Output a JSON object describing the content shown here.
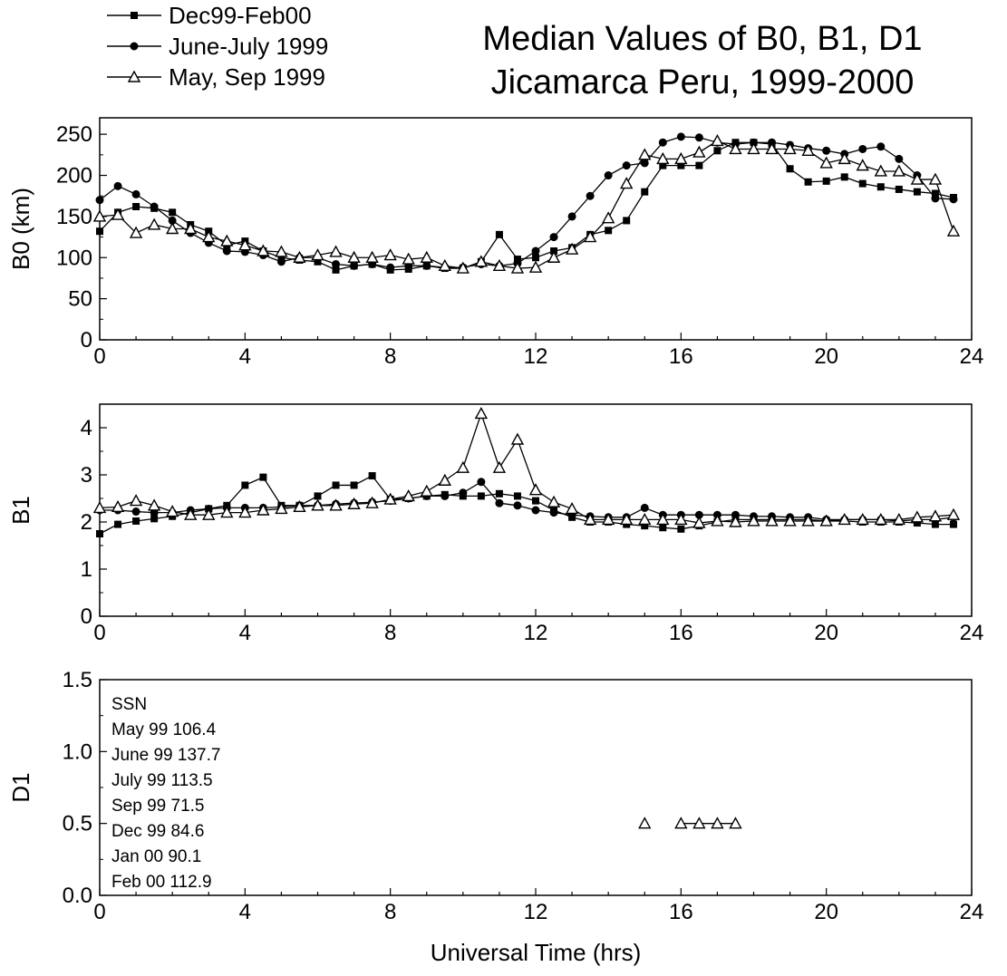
{
  "title_line1": "Median Values of B0, B1, D1",
  "title_line2": "Jicamarca Peru, 1999-2000",
  "xlabel": "Universal Time (hrs)",
  "legend": [
    {
      "label": "Dec99-Feb00",
      "marker": "square"
    },
    {
      "label": "June-July 1999",
      "marker": "circle"
    },
    {
      "label": "May, Sep 1999",
      "marker": "triangle-open"
    }
  ],
  "ssn_note": {
    "heading": "SSN",
    "lines": [
      "May 99  106.4",
      "June 99 137.7",
      "July 99  113.5",
      "Sep 99  71.5",
      "Dec 99  84.6",
      "Jan 00  90.1",
      "Feb 00  112.9"
    ]
  },
  "chart_data": [
    {
      "type": "line",
      "ylabel": "B0 (km)",
      "xlim": [
        0,
        24
      ],
      "ylim": [
        0,
        270
      ],
      "xticks": [
        0,
        4,
        8,
        12,
        16,
        20,
        24
      ],
      "yticks": [
        0,
        50,
        100,
        150,
        200,
        250
      ],
      "ytick_labels": [
        "0",
        "50",
        "100",
        "150",
        "200",
        "250"
      ],
      "series": [
        {
          "name": "Dec99-Feb00",
          "marker": "square",
          "x": [
            0,
            0.5,
            1,
            1.5,
            2,
            2.5,
            3,
            3.5,
            4,
            4.5,
            5,
            5.5,
            6,
            6.5,
            7,
            7.5,
            8,
            8.5,
            9,
            9.5,
            10,
            10.5,
            11,
            11.5,
            12,
            12.5,
            13,
            13.5,
            14,
            14.5,
            15,
            15.5,
            16,
            16.5,
            17,
            17.5,
            18,
            18.5,
            19,
            19.5,
            20,
            20.5,
            21,
            21.5,
            22,
            22.5,
            23,
            23.5
          ],
          "y": [
            132,
            155,
            162,
            160,
            155,
            140,
            132,
            115,
            120,
            108,
            100,
            97,
            95,
            85,
            90,
            92,
            85,
            86,
            90,
            87,
            87,
            95,
            128,
            98,
            100,
            108,
            112,
            128,
            133,
            145,
            180,
            212,
            212,
            212,
            230,
            240,
            240,
            238,
            208,
            192,
            193,
            198,
            190,
            186,
            183,
            180,
            178,
            173
          ]
        },
        {
          "name": "June-July 1999",
          "marker": "circle",
          "x": [
            0,
            0.5,
            1,
            1.5,
            2,
            2.5,
            3,
            3.5,
            4,
            4.5,
            5,
            5.5,
            6,
            6.5,
            7,
            7.5,
            8,
            8.5,
            9,
            9.5,
            10,
            10.5,
            11,
            11.5,
            12,
            12.5,
            13,
            13.5,
            14,
            14.5,
            15,
            15.5,
            16,
            16.5,
            17,
            17.5,
            18,
            18.5,
            19,
            19.5,
            20,
            20.5,
            21,
            21.5,
            22,
            22.5,
            23,
            23.5
          ],
          "y": [
            170,
            187,
            177,
            162,
            145,
            130,
            118,
            108,
            107,
            103,
            95,
            100,
            100,
            92,
            90,
            92,
            88,
            90,
            90,
            88,
            88,
            92,
            90,
            93,
            108,
            125,
            150,
            175,
            200,
            212,
            215,
            240,
            247,
            246,
            240,
            238,
            240,
            240,
            237,
            233,
            230,
            226,
            232,
            235,
            220,
            200,
            172,
            171
          ]
        },
        {
          "name": "May, Sep 1999",
          "marker": "triangle-open",
          "x": [
            0,
            0.5,
            1,
            1.5,
            2,
            2.5,
            3,
            3.5,
            4,
            4.5,
            5,
            5.5,
            6,
            6.5,
            7,
            7.5,
            8,
            8.5,
            9,
            9.5,
            10,
            10.5,
            11,
            11.5,
            12,
            12.5,
            13,
            13.5,
            14,
            14.5,
            15,
            15.5,
            16,
            16.5,
            17,
            17.5,
            18,
            18.5,
            19,
            19.5,
            20,
            20.5,
            21,
            21.5,
            22,
            22.5,
            23,
            23.5
          ],
          "y": [
            150,
            152,
            130,
            140,
            135,
            135,
            125,
            120,
            115,
            108,
            107,
            100,
            103,
            107,
            100,
            100,
            103,
            98,
            100,
            90,
            87,
            95,
            90,
            87,
            88,
            100,
            110,
            125,
            148,
            190,
            225,
            220,
            220,
            228,
            242,
            232,
            232,
            232,
            232,
            230,
            215,
            220,
            212,
            205,
            205,
            195,
            195,
            132
          ]
        }
      ]
    },
    {
      "type": "line",
      "ylabel": "B1",
      "xlim": [
        0,
        24
      ],
      "ylim": [
        0,
        4.5
      ],
      "xticks": [
        0,
        4,
        8,
        12,
        16,
        20,
        24
      ],
      "yticks": [
        0,
        1,
        2,
        3,
        4
      ],
      "ytick_labels": [
        "0",
        "1",
        "2",
        "3",
        "4"
      ],
      "series": [
        {
          "name": "Dec99-Feb00",
          "marker": "square",
          "x": [
            0,
            0.5,
            1,
            1.5,
            2,
            2.5,
            3,
            3.5,
            4,
            4.5,
            5,
            5.5,
            6,
            6.5,
            7,
            7.5,
            8,
            8.5,
            9,
            9.5,
            10,
            10.5,
            11,
            11.5,
            12,
            12.5,
            13,
            13.5,
            14,
            14.5,
            15,
            15.5,
            16,
            16.5,
            17,
            17.5,
            18,
            18.5,
            19,
            19.5,
            20,
            20.5,
            21,
            21.5,
            22,
            22.5,
            23,
            23.5
          ],
          "y": [
            1.75,
            1.95,
            2.02,
            2.07,
            2.12,
            2.2,
            2.28,
            2.35,
            2.78,
            2.95,
            2.35,
            2.35,
            2.55,
            2.78,
            2.78,
            2.98,
            2.48,
            2.5,
            2.55,
            2.58,
            2.55,
            2.55,
            2.6,
            2.55,
            2.45,
            2.25,
            2.1,
            2.0,
            2.0,
            1.95,
            1.92,
            1.88,
            1.85,
            1.92,
            2.0,
            2.05,
            2.05,
            2.05,
            2.05,
            2.05,
            2.02,
            2.02,
            2.0,
            2.0,
            2.0,
            1.98,
            1.95,
            1.95
          ]
        },
        {
          "name": "June-July 1999",
          "marker": "circle",
          "x": [
            0,
            0.5,
            1,
            1.5,
            2,
            2.5,
            3,
            3.5,
            4,
            4.5,
            5,
            5.5,
            6,
            6.5,
            7,
            7.5,
            8,
            8.5,
            9,
            9.5,
            10,
            10.5,
            11,
            11.5,
            12,
            12.5,
            13,
            13.5,
            14,
            14.5,
            15,
            15.5,
            16,
            16.5,
            17,
            17.5,
            18,
            18.5,
            19,
            19.5,
            20,
            20.5,
            21,
            21.5,
            22,
            22.5,
            23,
            23.5
          ],
          "y": [
            2.25,
            2.25,
            2.22,
            2.2,
            2.2,
            2.25,
            2.28,
            2.3,
            2.3,
            2.3,
            2.32,
            2.35,
            2.35,
            2.38,
            2.4,
            2.42,
            2.45,
            2.5,
            2.55,
            2.55,
            2.62,
            2.85,
            2.4,
            2.35,
            2.25,
            2.2,
            2.15,
            2.12,
            2.1,
            2.1,
            2.3,
            2.15,
            2.15,
            2.15,
            2.15,
            2.15,
            2.12,
            2.12,
            2.1,
            2.1,
            2.05,
            2.05,
            2.05,
            2.05,
            2.02,
            2.05,
            2.05,
            2.1
          ]
        },
        {
          "name": "May, Sep 1999",
          "marker": "triangle-open",
          "x": [
            0,
            0.5,
            1,
            1.5,
            2,
            2.5,
            3,
            3.5,
            4,
            4.5,
            5,
            5.5,
            6,
            6.5,
            7,
            7.5,
            8,
            8.5,
            9,
            9.5,
            10,
            10.5,
            11,
            11.5,
            12,
            12.5,
            13,
            13.5,
            14,
            14.5,
            15,
            15.5,
            16,
            16.5,
            17,
            17.5,
            18,
            18.5,
            19,
            19.5,
            20,
            20.5,
            21,
            21.5,
            22,
            22.5,
            23,
            23.5
          ],
          "y": [
            2.3,
            2.32,
            2.45,
            2.35,
            2.22,
            2.15,
            2.15,
            2.2,
            2.2,
            2.25,
            2.28,
            2.32,
            2.35,
            2.35,
            2.38,
            2.4,
            2.48,
            2.55,
            2.65,
            2.88,
            3.15,
            4.3,
            3.15,
            3.75,
            2.68,
            2.42,
            2.28,
            2.05,
            2.05,
            2.05,
            2.05,
            2.05,
            2.05,
            1.98,
            2.02,
            2.0,
            2.02,
            2.02,
            2.02,
            2.02,
            2.02,
            2.05,
            2.05,
            2.05,
            2.05,
            2.1,
            2.12,
            2.15
          ]
        }
      ]
    },
    {
      "type": "scatter",
      "ylabel": "D1",
      "xlim": [
        0,
        24
      ],
      "ylim": [
        0,
        1.5
      ],
      "xticks": [
        0,
        4,
        8,
        12,
        16,
        20,
        24
      ],
      "yticks": [
        0,
        0.5,
        1.0,
        1.5
      ],
      "ytick_labels": [
        "0.0",
        "0.5",
        "1.0",
        "1.5"
      ],
      "series": [
        {
          "name": "May, Sep 1999",
          "marker": "triangle-open",
          "x": [
            15,
            16,
            16.5,
            17,
            17.5
          ],
          "y": [
            0.5,
            0.5,
            0.5,
            0.5,
            0.5
          ],
          "connect": [
            false,
            true,
            true,
            true
          ]
        }
      ]
    }
  ]
}
